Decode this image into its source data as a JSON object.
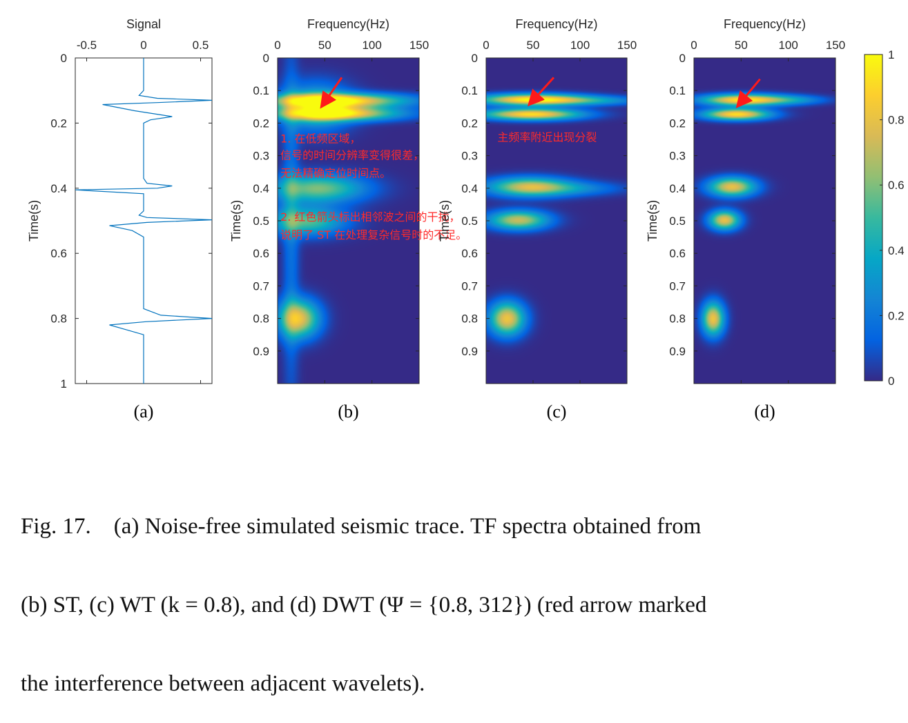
{
  "chart_data": [
    {
      "type": "line",
      "panel": "(a)",
      "title": "Signal",
      "xlabel": "",
      "ylabel": "Time(s)",
      "xlim": [
        -0.6,
        0.6
      ],
      "ylim": [
        0,
        1
      ],
      "y_reversed": true,
      "x_ticks": [
        "-0.5",
        "0",
        "0.5"
      ],
      "y_ticks": [
        "0",
        "0.2",
        "0.4",
        "0.6",
        "0.8",
        "1"
      ],
      "series": [
        {
          "color": "#0072bd",
          "x": [
            0,
            0,
            -0.04,
            0.12,
            0.6,
            0.12,
            -0.36,
            -0.08,
            0.25,
            0.06,
            0,
            0,
            0.03,
            0.25,
            0.12,
            -0.6,
            0,
            0,
            -0.04,
            0.03,
            0.6,
            0.03,
            -0.3,
            -0.1,
            0,
            0,
            0,
            0.15,
            0.6,
            0.02,
            -0.3,
            -0.15,
            0,
            0,
            0
          ],
          "y": [
            0,
            0.1,
            0.115,
            0.124,
            0.13,
            0.137,
            0.143,
            0.162,
            0.18,
            0.19,
            0.2,
            0.37,
            0.385,
            0.393,
            0.4,
            0.405,
            0.417,
            0.47,
            0.483,
            0.49,
            0.497,
            0.505,
            0.515,
            0.53,
            0.55,
            0.76,
            0.77,
            0.79,
            0.8,
            0.81,
            0.82,
            0.835,
            0.85,
            0.9,
            1.0
          ]
        }
      ]
    },
    {
      "type": "heatmap",
      "panel": "(b)",
      "title": "Frequency(Hz)",
      "ylabel": "Time(s)",
      "xlim": [
        0,
        150
      ],
      "ylim": [
        0,
        1
      ],
      "y_reversed": true,
      "x_ticks": [
        "0",
        "50",
        "100",
        "150"
      ],
      "y_ticks": [
        "0",
        "0.1",
        "0.2",
        "0.3",
        "0.4",
        "0.5",
        "0.6",
        "0.7",
        "0.8",
        "0.9"
      ],
      "blobs": [
        {
          "t": 0.13,
          "f": 62,
          "dt": 0.015,
          "df": 50,
          "a": 0.95
        },
        {
          "t": 0.17,
          "f": 62,
          "dt": 0.015,
          "df": 45,
          "a": 0.9
        },
        {
          "t": 0.15,
          "f": 40,
          "dt": 0.05,
          "df": 25,
          "a": 0.45
        },
        {
          "t": 0.4,
          "f": 42,
          "dt": 0.03,
          "df": 35,
          "a": 0.6
        },
        {
          "t": 0.5,
          "f": 30,
          "dt": 0.03,
          "df": 28,
          "a": 0.55
        },
        {
          "t": 0.8,
          "f": 22,
          "dt": 0.04,
          "df": 15,
          "a": 0.8
        },
        {
          "t": 0.5,
          "f": 14,
          "dt": 0.4,
          "df": 6,
          "a": 0.18
        }
      ],
      "annotations": [
        {
          "text": "1. 在低频区域，",
          "t": 0.26,
          "f": 3
        },
        {
          "text": "信号的时间分辨率变得很差，",
          "t": 0.31,
          "f": 3
        },
        {
          "text": "无法精确定位时间点。",
          "t": 0.365,
          "f": 3
        },
        {
          "text": "2. 红色箭头标出相邻波之间的干扰，",
          "t": 0.5,
          "f": 3
        },
        {
          "text": "说明了 ST 在处理复杂信号时的不足。",
          "t": 0.555,
          "f": 3
        }
      ],
      "arrow": {
        "from": {
          "t": 0.06,
          "f": 68
        },
        "to": {
          "t": 0.135,
          "f": 50
        }
      }
    },
    {
      "type": "heatmap",
      "panel": "(c)",
      "title": "Frequency(Hz)",
      "ylabel": "Time(s)",
      "xlim": [
        0,
        150
      ],
      "ylim": [
        0,
        1
      ],
      "y_reversed": true,
      "x_ticks": [
        "0",
        "50",
        "100",
        "150"
      ],
      "y_ticks": [
        "0",
        "0.1",
        "0.2",
        "0.3",
        "0.4",
        "0.5",
        "0.6",
        "0.7",
        "0.8",
        "0.9"
      ],
      "blobs": [
        {
          "t": 0.127,
          "f": 48,
          "dt": 0.012,
          "df": 38,
          "a": 0.95
        },
        {
          "t": 0.172,
          "f": 48,
          "dt": 0.012,
          "df": 36,
          "a": 0.92
        },
        {
          "t": 0.395,
          "f": 45,
          "dt": 0.02,
          "df": 30,
          "a": 0.72
        },
        {
          "t": 0.497,
          "f": 34,
          "dt": 0.02,
          "df": 22,
          "a": 0.72
        },
        {
          "t": 0.8,
          "f": 22,
          "dt": 0.035,
          "df": 13,
          "a": 0.82
        },
        {
          "t": 0.4,
          "f": 95,
          "dt": 0.015,
          "df": 35,
          "a": 0.22
        },
        {
          "t": 0.13,
          "f": 110,
          "dt": 0.01,
          "df": 40,
          "a": 0.3
        }
      ],
      "annotations": [
        {
          "text": "主频率附近出现分裂",
          "t": 0.255,
          "f": 12
        }
      ],
      "arrow": {
        "from": {
          "t": 0.06,
          "f": 72
        },
        "to": {
          "t": 0.13,
          "f": 50
        }
      }
    },
    {
      "type": "heatmap",
      "panel": "(d)",
      "title": "Frequency(Hz)",
      "ylabel": "Time(s)",
      "xlim": [
        0,
        150
      ],
      "ylim": [
        0,
        1
      ],
      "y_reversed": true,
      "x_ticks": [
        "0",
        "50",
        "100",
        "150"
      ],
      "y_ticks": [
        "0",
        "0.1",
        "0.2",
        "0.3",
        "0.4",
        "0.5",
        "0.6",
        "0.7",
        "0.8",
        "0.9"
      ],
      "colorbar": {
        "ticks": [
          "0",
          "0.2",
          "0.4",
          "0.6",
          "0.8",
          "1"
        ],
        "range": [
          0,
          1
        ]
      },
      "blobs": [
        {
          "t": 0.128,
          "f": 52,
          "dt": 0.012,
          "df": 30,
          "a": 0.95
        },
        {
          "t": 0.172,
          "f": 45,
          "dt": 0.012,
          "df": 24,
          "a": 0.92
        },
        {
          "t": 0.395,
          "f": 40,
          "dt": 0.02,
          "df": 17,
          "a": 0.8
        },
        {
          "t": 0.497,
          "f": 32,
          "dt": 0.02,
          "df": 11,
          "a": 0.8
        },
        {
          "t": 0.8,
          "f": 20,
          "dt": 0.035,
          "df": 8,
          "a": 0.82
        },
        {
          "t": 0.128,
          "f": 105,
          "dt": 0.01,
          "df": 25,
          "a": 0.25
        }
      ],
      "arrow": {
        "from": {
          "t": 0.065,
          "f": 70
        },
        "to": {
          "t": 0.135,
          "f": 50
        }
      }
    }
  ],
  "caption": [
    "Fig. 17.    (a) Noise-free simulated seismic trace. TF spectra obtained from",
    "(b) ST, (c) WT (k = 0.8), and (d) DWT (Ψ = {0.8, 312}) (red arrow marked",
    "the interference between adjacent wavelets)."
  ]
}
